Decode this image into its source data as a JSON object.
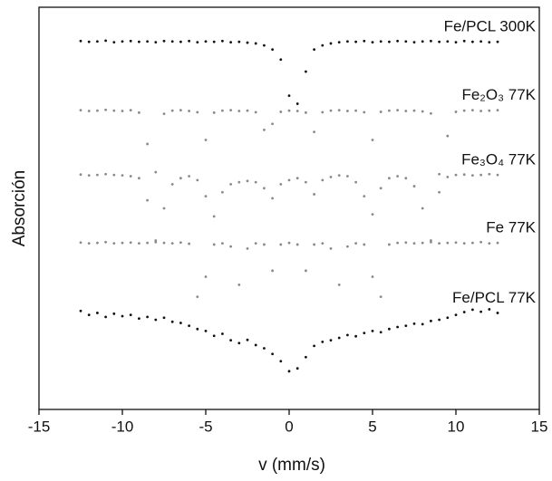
{
  "chart_data": {
    "type": "scatter",
    "xlabel": "v (mm/s)",
    "ylabel": "Absorción",
    "xlim": [
      -15,
      15
    ],
    "xticks": [
      -15,
      -10,
      -5,
      0,
      5,
      10,
      15
    ],
    "ylim": [
      0,
      100
    ],
    "x": [
      -12.5,
      -12,
      -11.5,
      -11,
      -10.5,
      -10,
      -9.5,
      -9,
      -8.5,
      -8,
      -7.5,
      -7,
      -6.5,
      -6,
      -5.5,
      -5,
      -4.5,
      -4,
      -3.5,
      -3,
      -2.5,
      -2,
      -1.5,
      -1,
      -0.5,
      0,
      0.5,
      1,
      1.5,
      2,
      2.5,
      3,
      3.5,
      4,
      4.5,
      5,
      5.5,
      6,
      6.5,
      7,
      7.5,
      8,
      8.5,
      9,
      9.5,
      10,
      10.5,
      11,
      11.5,
      12,
      12.5
    ],
    "series": [
      {
        "name": "Fe/PCL 300K",
        "color": "#111111",
        "values": [
          91.6,
          91.4,
          91.5,
          91.7,
          91.3,
          91.5,
          91.6,
          91.4,
          91.5,
          91.3,
          91.6,
          91.5,
          91.4,
          91.6,
          91.3,
          91.5,
          91.4,
          91.6,
          91.3,
          91.4,
          91.2,
          91.0,
          90.5,
          89.5,
          87,
          78,
          76,
          84,
          89.5,
          90.5,
          91.0,
          91.3,
          91.5,
          91.4,
          91.6,
          91.3,
          91.5,
          91.4,
          91.6,
          91.5,
          91.3,
          91.5,
          91.6,
          91.4,
          91.5,
          91.3,
          91.6,
          91.4,
          91.5,
          91.3,
          91.4
        ]
      },
      {
        "name": "Fe₂O₃ 77K",
        "color": "#8a8a8a",
        "values": [
          74.4,
          74.2,
          74.3,
          74.5,
          74.3,
          74.2,
          74.4,
          73.8,
          66,
          59,
          73.5,
          74.3,
          74.4,
          74.2,
          73.9,
          67,
          73.8,
          74.3,
          74.4,
          74.2,
          74.3,
          73.9,
          69.5,
          71,
          74.0,
          74.3,
          74.2,
          73.8,
          69,
          73.9,
          74.3,
          74.4,
          74.2,
          74.3,
          73.9,
          67,
          74,
          74.3,
          74.4,
          74.2,
          74.3,
          74.1,
          73.6,
          58.5,
          68,
          74,
          74.3,
          74.4,
          74.2,
          74.3,
          74.4
        ]
      },
      {
        "name": "Fe₃O₄ 77K",
        "color": "#8a8a8a",
        "values": [
          58.4,
          58.2,
          58.3,
          58.5,
          58.3,
          58.2,
          58.0,
          57.5,
          52,
          42,
          50,
          56,
          57.5,
          58,
          57,
          53,
          48,
          54,
          56,
          56.5,
          56.8,
          56.5,
          55,
          52.5,
          56,
          57,
          57.5,
          56.5,
          53.5,
          57,
          57.8,
          58.2,
          58,
          56.5,
          53,
          48.5,
          55,
          57.5,
          58,
          57.5,
          55.5,
          50,
          42,
          54,
          57.8,
          58.3,
          58.4,
          58.2,
          58.3,
          58.5,
          58.3
        ]
      },
      {
        "name": "Fe 77K",
        "color": "#8a8a8a",
        "values": [
          41.5,
          41.3,
          41.4,
          41.6,
          41.3,
          41.4,
          41.5,
          41.3,
          41.4,
          41.6,
          41.4,
          41.3,
          41.5,
          41.2,
          28,
          33,
          41,
          41.3,
          40.5,
          31,
          40,
          41.3,
          41,
          34.5,
          41,
          41.4,
          41,
          34.5,
          41,
          41.3,
          40,
          31,
          40.5,
          41.3,
          41,
          33,
          28,
          41,
          41.4,
          41.5,
          41.3,
          41.4,
          41.6,
          41.3,
          41.4,
          41.5,
          41.3,
          41.4,
          41.6,
          41.3,
          41.4
        ]
      },
      {
        "name": "Fe/PCL 77K",
        "color": "#111111",
        "values": [
          24.5,
          23.5,
          24,
          23,
          23.8,
          23.2,
          23.5,
          22.6,
          23,
          22.3,
          22.8,
          21.8,
          21.5,
          20.8,
          20,
          19.5,
          18.3,
          18.8,
          17.2,
          16.5,
          17.3,
          16,
          15.2,
          13.8,
          12,
          9.5,
          10.2,
          13,
          15.8,
          16.8,
          17.2,
          17.8,
          18.5,
          18.2,
          19,
          19.5,
          19.2,
          20,
          20.5,
          20.8,
          21.3,
          21.2,
          22,
          22.3,
          22.8,
          23.5,
          24.2,
          24.8,
          24.3,
          24.9,
          24
        ]
      }
    ]
  }
}
